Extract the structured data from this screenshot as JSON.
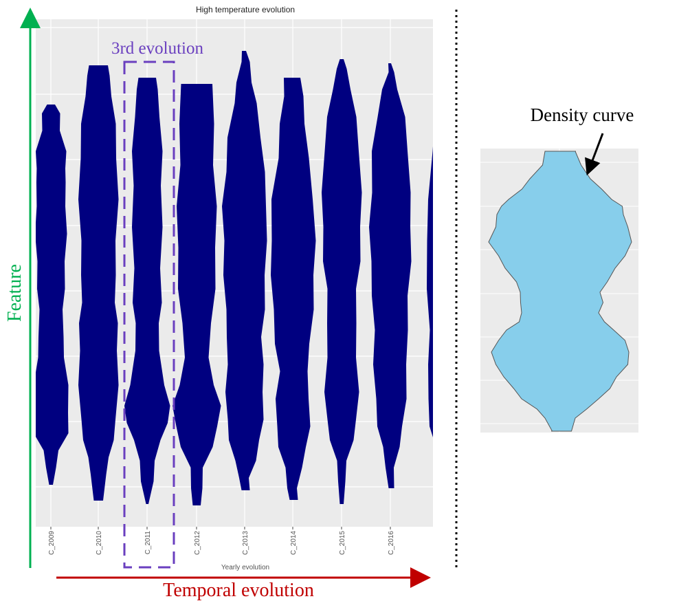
{
  "chart_data": [
    {
      "type": "violin",
      "title": "High temperature evolution",
      "xlabel": "Yearly evolution",
      "ylabel": "",
      "categories": [
        "C_2009",
        "C_2010",
        "C_2011",
        "C_2012",
        "C_2013",
        "C_2014",
        "C_2015",
        "C_2016"
      ],
      "color": "#000080",
      "grid": true,
      "legend": "none",
      "series": [
        {
          "category": "C_2009",
          "range": [
            0.09,
            0.87
          ]
        },
        {
          "category": "C_2010",
          "range": [
            0.05,
            0.94
          ]
        },
        {
          "category": "C_2011",
          "range": [
            0.04,
            0.91
          ]
        },
        {
          "category": "C_2012",
          "range": [
            0.04,
            0.9
          ]
        },
        {
          "category": "C_2013",
          "range": [
            0.07,
            0.96
          ]
        },
        {
          "category": "C_2014",
          "range": [
            0.05,
            0.91
          ]
        },
        {
          "category": "C_2015",
          "range": [
            0.04,
            0.95
          ]
        },
        {
          "category": "C_2016",
          "range": [
            0.08,
            0.91
          ]
        }
      ],
      "partial_violin_at_right_edge": true
    },
    {
      "type": "violin",
      "title": "",
      "color": "#87ceeb",
      "outline_color": "#555555",
      "grid": true
    }
  ],
  "annotations": {
    "highlight_label": "3rd evolution",
    "highlight_category": "C_2011",
    "feature_axis_label": "Feature",
    "temporal_axis_label": "Temporal evolution",
    "density_label": "Density curve",
    "colors": {
      "highlight": "#6a3fbf",
      "feature_arrow": "#00b050",
      "temporal_arrow": "#c00000",
      "divider": "#000000"
    }
  }
}
